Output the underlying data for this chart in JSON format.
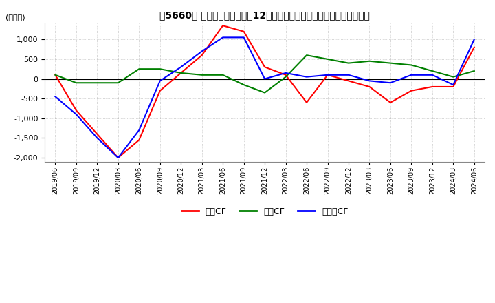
{
  "title": "【5660】 キャッシュフローの12か月移動合計の対前年同期増減額の推移",
  "ylabel": "(百万円)",
  "ylim": [
    -2100,
    1400
  ],
  "yticks": [
    -2000,
    -1500,
    -1000,
    -500,
    0,
    500,
    1000
  ],
  "dates": [
    "2019/06",
    "2019/09",
    "2019/12",
    "2020/03",
    "2020/06",
    "2020/09",
    "2020/12",
    "2021/03",
    "2021/06",
    "2021/09",
    "2021/12",
    "2022/03",
    "2022/06",
    "2022/09",
    "2022/12",
    "2023/03",
    "2023/06",
    "2023/09",
    "2023/12",
    "2024/03",
    "2024/06"
  ],
  "eigyo_cf": [
    100,
    -800,
    -1400,
    -2000,
    -1550,
    -300,
    150,
    600,
    1350,
    1200,
    300,
    100,
    -600,
    100,
    -50,
    -200,
    -600,
    -300,
    -200,
    -200,
    800
  ],
  "toshi_cf": [
    100,
    -100,
    -100,
    -100,
    250,
    250,
    150,
    100,
    100,
    -150,
    -350,
    50,
    600,
    500,
    400,
    450,
    400,
    350,
    200,
    50,
    200
  ],
  "free_cf": [
    -450,
    -900,
    -1500,
    -2000,
    -1300,
    -50,
    300,
    700,
    1050,
    1050,
    0,
    150,
    50,
    100,
    100,
    -50,
    -100,
    100,
    100,
    -150,
    1000
  ],
  "eigyo_color": "#ff0000",
  "toshi_color": "#008000",
  "free_color": "#0000ff",
  "bg_color": "#ffffff",
  "grid_color": "#b0b0b0",
  "legend_labels": [
    "営業CF",
    "投資CF",
    "フリーCF"
  ]
}
